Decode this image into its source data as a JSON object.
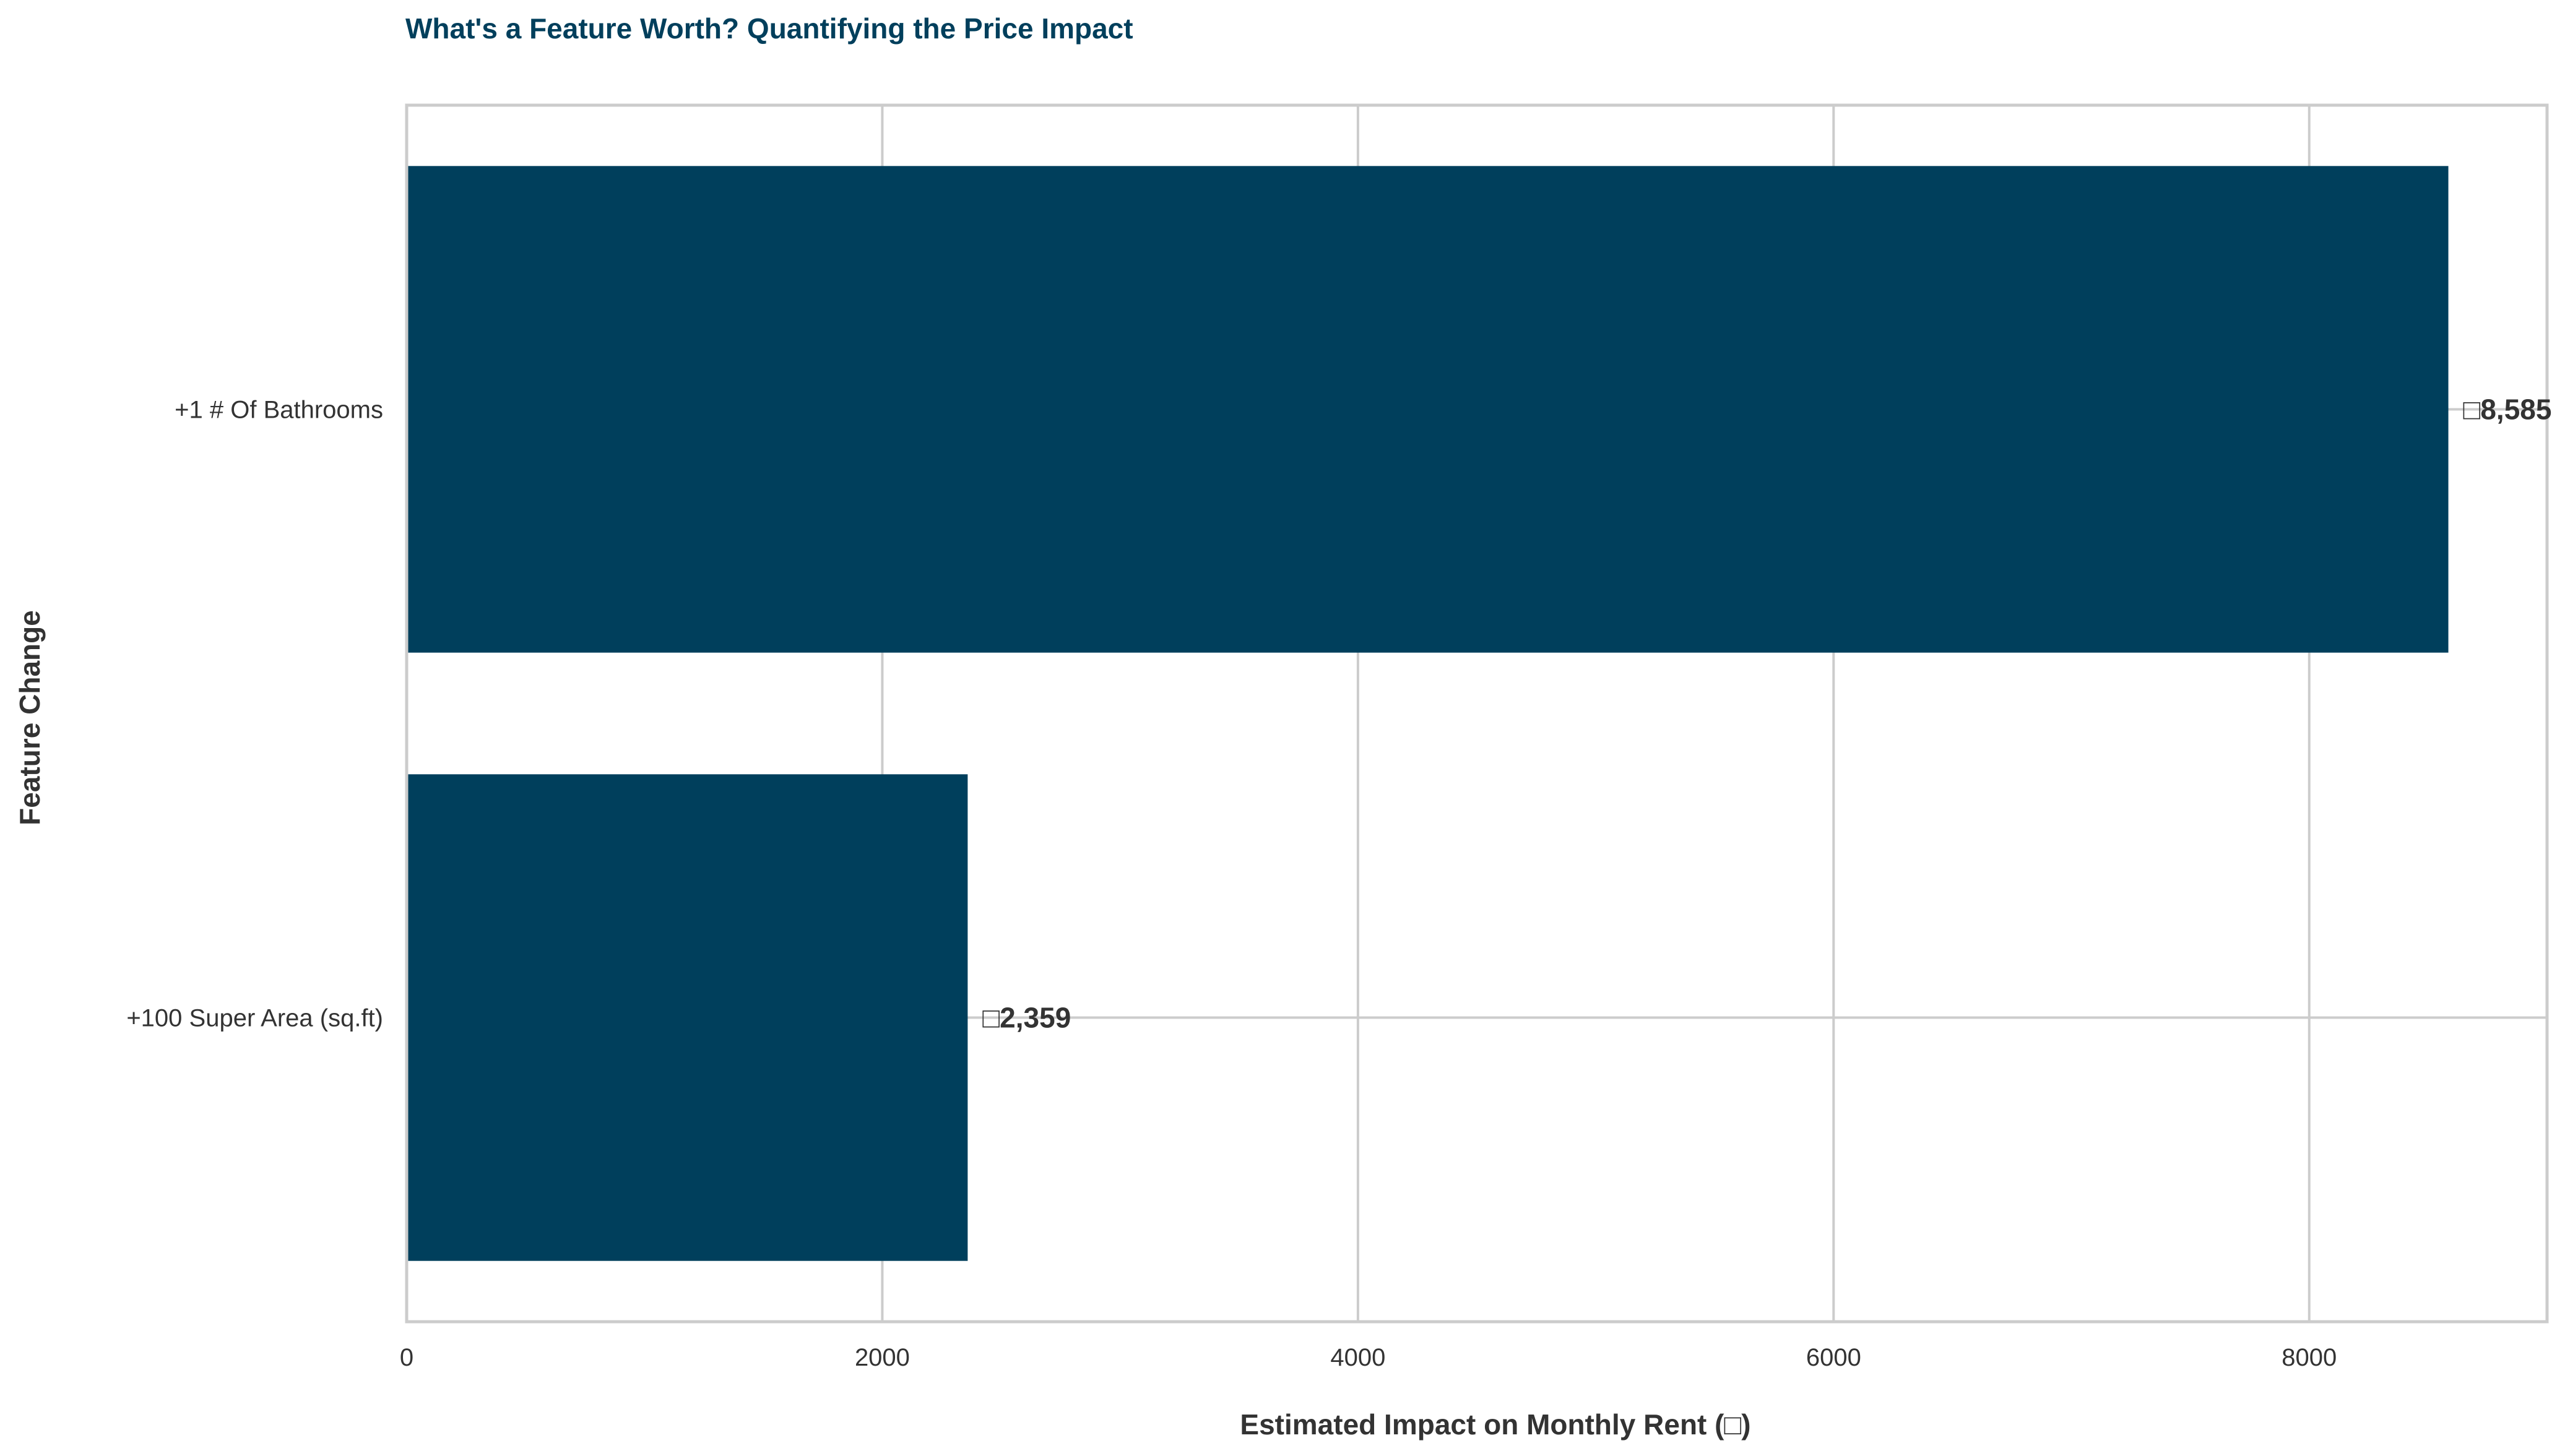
{
  "chart_data": {
    "type": "bar",
    "orientation": "horizontal",
    "title": "What's a Feature Worth? Quantifying the Price Impact",
    "xlabel": "Estimated Impact on Monthly Rent (□)",
    "ylabel": "Feature Change",
    "categories": [
      "+1 # Of Bathrooms",
      "+100 Super Area (sq.ft)"
    ],
    "values": [
      8585,
      2359
    ],
    "data_labels": [
      "□8,585",
      "□2,359"
    ],
    "xlim": [
      0,
      9000
    ],
    "xticks": [
      0,
      2000,
      4000,
      6000,
      8000
    ],
    "xtick_labels": [
      "0",
      "2000",
      "4000",
      "6000",
      "8000"
    ],
    "grid": true,
    "bar_color": "#003f5c",
    "grid_color": "#cccccc"
  }
}
